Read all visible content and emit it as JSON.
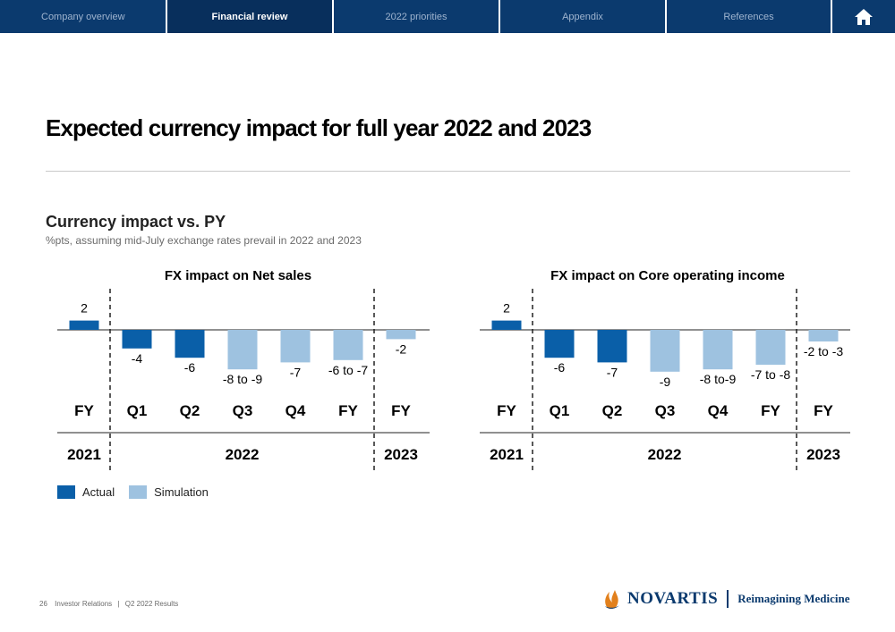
{
  "nav": {
    "tabs": [
      "Company overview",
      "Financial review",
      "2022 priorities",
      "Appendix",
      "References"
    ],
    "active": "Financial review"
  },
  "title": "Expected currency impact for full year 2022 and 2023",
  "subtitle": "Currency impact vs. PY",
  "subnote": "%pts, assuming mid-July exchange rates prevail in 2022 and 2023",
  "legend": {
    "actual": "Actual",
    "simulation": "Simulation"
  },
  "colors": {
    "actual": "#0a5fa8",
    "simulation": "#9ec2e0",
    "nav": "#0b3a6e",
    "brand_orange": "#e2801c"
  },
  "chart_data": [
    {
      "type": "bar",
      "title": "FX impact on Net sales",
      "categories": [
        "FY",
        "Q1",
        "Q2",
        "Q3",
        "Q4",
        "FY",
        "FY"
      ],
      "periods": [
        "2021",
        "2022",
        "2023"
      ],
      "period_of_category": [
        0,
        1,
        1,
        1,
        1,
        1,
        2
      ],
      "values": [
        2,
        -4,
        -6,
        -8.5,
        -7,
        -6.5,
        -2
      ],
      "labels": [
        "2",
        "-4",
        "-6",
        "-8 to -9",
        "-7",
        "-6 to -7",
        "-2"
      ],
      "kind": [
        "actual",
        "actual",
        "actual",
        "simulation",
        "simulation",
        "simulation",
        "simulation"
      ],
      "units": "%pts"
    },
    {
      "type": "bar",
      "title": "FX impact on Core operating income",
      "categories": [
        "FY",
        "Q1",
        "Q2",
        "Q3",
        "Q4",
        "FY",
        "FY"
      ],
      "periods": [
        "2021",
        "2022",
        "2023"
      ],
      "period_of_category": [
        0,
        1,
        1,
        1,
        1,
        1,
        2
      ],
      "values": [
        2,
        -6,
        -7,
        -9,
        -8.5,
        -7.5,
        -2.5
      ],
      "labels": [
        "2",
        "-6",
        "-7",
        "-9",
        "-8 to-9",
        "-7 to -8",
        "-2 to -3"
      ],
      "kind": [
        "actual",
        "actual",
        "actual",
        "simulation",
        "simulation",
        "simulation",
        "simulation"
      ],
      "units": "%pts"
    }
  ],
  "footer": {
    "page": "26",
    "section": "Investor Relations",
    "deck": "Q2 2022 Results"
  },
  "brand": {
    "name": "NOVARTIS",
    "tagline": "Reimagining Medicine"
  }
}
